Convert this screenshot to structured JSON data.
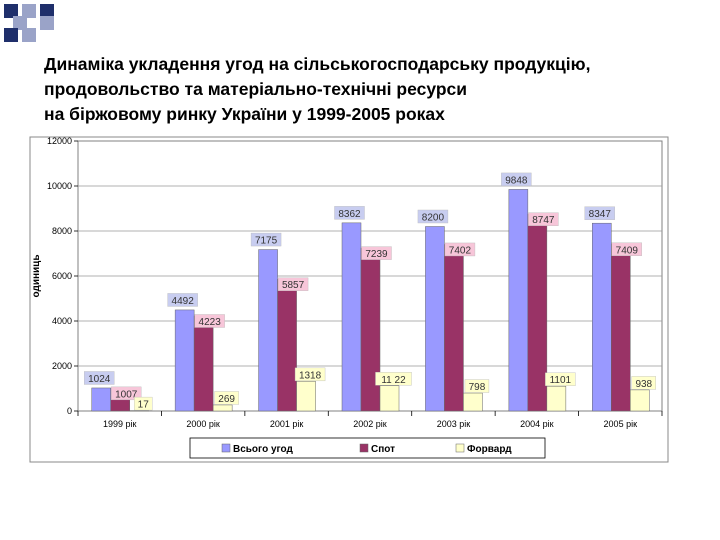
{
  "title": "Динаміка укладення угод на сільськогосподарську продукцію,\nпродовольство та матеріально-технічні ресурси\nна біржовому ринку України у 1999-2005 роках",
  "colors": {
    "square_dark": "#1f2f6b",
    "square_light": "#9aa3c8",
    "plot_bg": "#ffffff",
    "grid": "#999999",
    "label_box_pink": "#f7c6d9",
    "label_box_blue": "#c8cdf0",
    "label_box_yellow": "#ffffcc"
  },
  "chart_data": {
    "type": "bar",
    "title": "",
    "xlabel": "",
    "ylabel": "одиниць",
    "ylim": [
      0,
      12000
    ],
    "yticks": [
      "0",
      "2000",
      "4000",
      "6000",
      "8000",
      "10000",
      "12000"
    ],
    "grid": true,
    "legend_position": "bottom",
    "categories": [
      "1999 рік",
      "2000 рік",
      "2001 рік",
      "2002 рік",
      "2003 рік",
      "2004 рік",
      "2005 рік"
    ],
    "series": [
      {
        "name": "Всього угод",
        "color": "#9999ff",
        "values": [
          1024,
          4492,
          7175,
          8362,
          8200,
          9848,
          8347
        ],
        "labels": [
          "1024",
          "4492",
          "7175",
          "8362",
          "8200",
          "9848",
          "8347"
        ],
        "label_bg": "#c8cdf0"
      },
      {
        "name": "Спот",
        "color": "#993366",
        "values": [
          1007,
          4223,
          5857,
          7239,
          7402,
          8747,
          7409
        ],
        "labels": [
          "1007",
          "4223",
          "5857",
          "7239",
          "7402",
          "8747",
          "7409"
        ],
        "label_bg": "#f7c6d9"
      },
      {
        "name": "Форвард",
        "color": "#ffffcc",
        "values": [
          17,
          269,
          1318,
          1122,
          798,
          1101,
          938
        ],
        "labels": [
          "17",
          "269",
          "1318",
          "11 22",
          "798",
          "1101",
          "938"
        ],
        "label_bg": "#ffffcc"
      }
    ]
  }
}
